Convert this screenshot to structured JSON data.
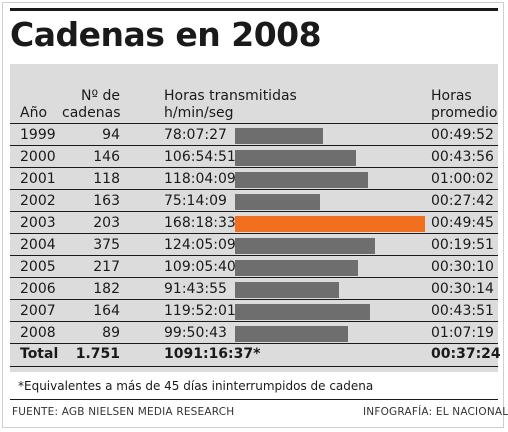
{
  "title": "Cadenas en 2008",
  "headers": {
    "year": "Año",
    "channels_1": "Nº de",
    "channels_2": "cadenas",
    "hours_1": "Horas transmitidas",
    "hours_2": "h/min/seg",
    "avg_1": "Horas",
    "avg_2": "promedio"
  },
  "chart_data": {
    "type": "bar",
    "categories": [
      "1999",
      "2000",
      "2001",
      "2002",
      "2003",
      "2004",
      "2005",
      "2006",
      "2007",
      "2008"
    ],
    "channels": [
      "94",
      "146",
      "118",
      "163",
      "203",
      "375",
      "217",
      "182",
      "164",
      "89"
    ],
    "hours_transmitted": [
      "78:07:27",
      "106:54:51",
      "118:04:09",
      "75:14:09",
      "168:18:33",
      "124:05:09",
      "109:05:40",
      "91:43:55",
      "119:52:01",
      "99:50:43"
    ],
    "values": [
      78.12,
      106.91,
      118.07,
      75.24,
      168.31,
      124.09,
      109.09,
      91.73,
      119.87,
      99.85
    ],
    "average_hours": [
      "00:49:52",
      "00:43:56",
      "01:00:02",
      "00:27:42",
      "00:49:45",
      "00:19:51",
      "00:30:10",
      "00:30:14",
      "00:43:51",
      "01:07:19"
    ],
    "highlight_category": "2003",
    "colors": {
      "bar": "#6e6e6e",
      "highlight": "#f26f21",
      "panel": "#dcdcdc"
    },
    "total": {
      "label": "Total",
      "channels": "1.751",
      "hours": "1091:16:37*",
      "average": "00:37:24"
    }
  },
  "footnote": "*Equivalentes a más de 45 días ininterrumpidos de cadena",
  "source": "FUENTE: AGB NIELSEN MEDIA RESEARCH",
  "credit": "INFOGRAFÍA: EL NACIONAL"
}
